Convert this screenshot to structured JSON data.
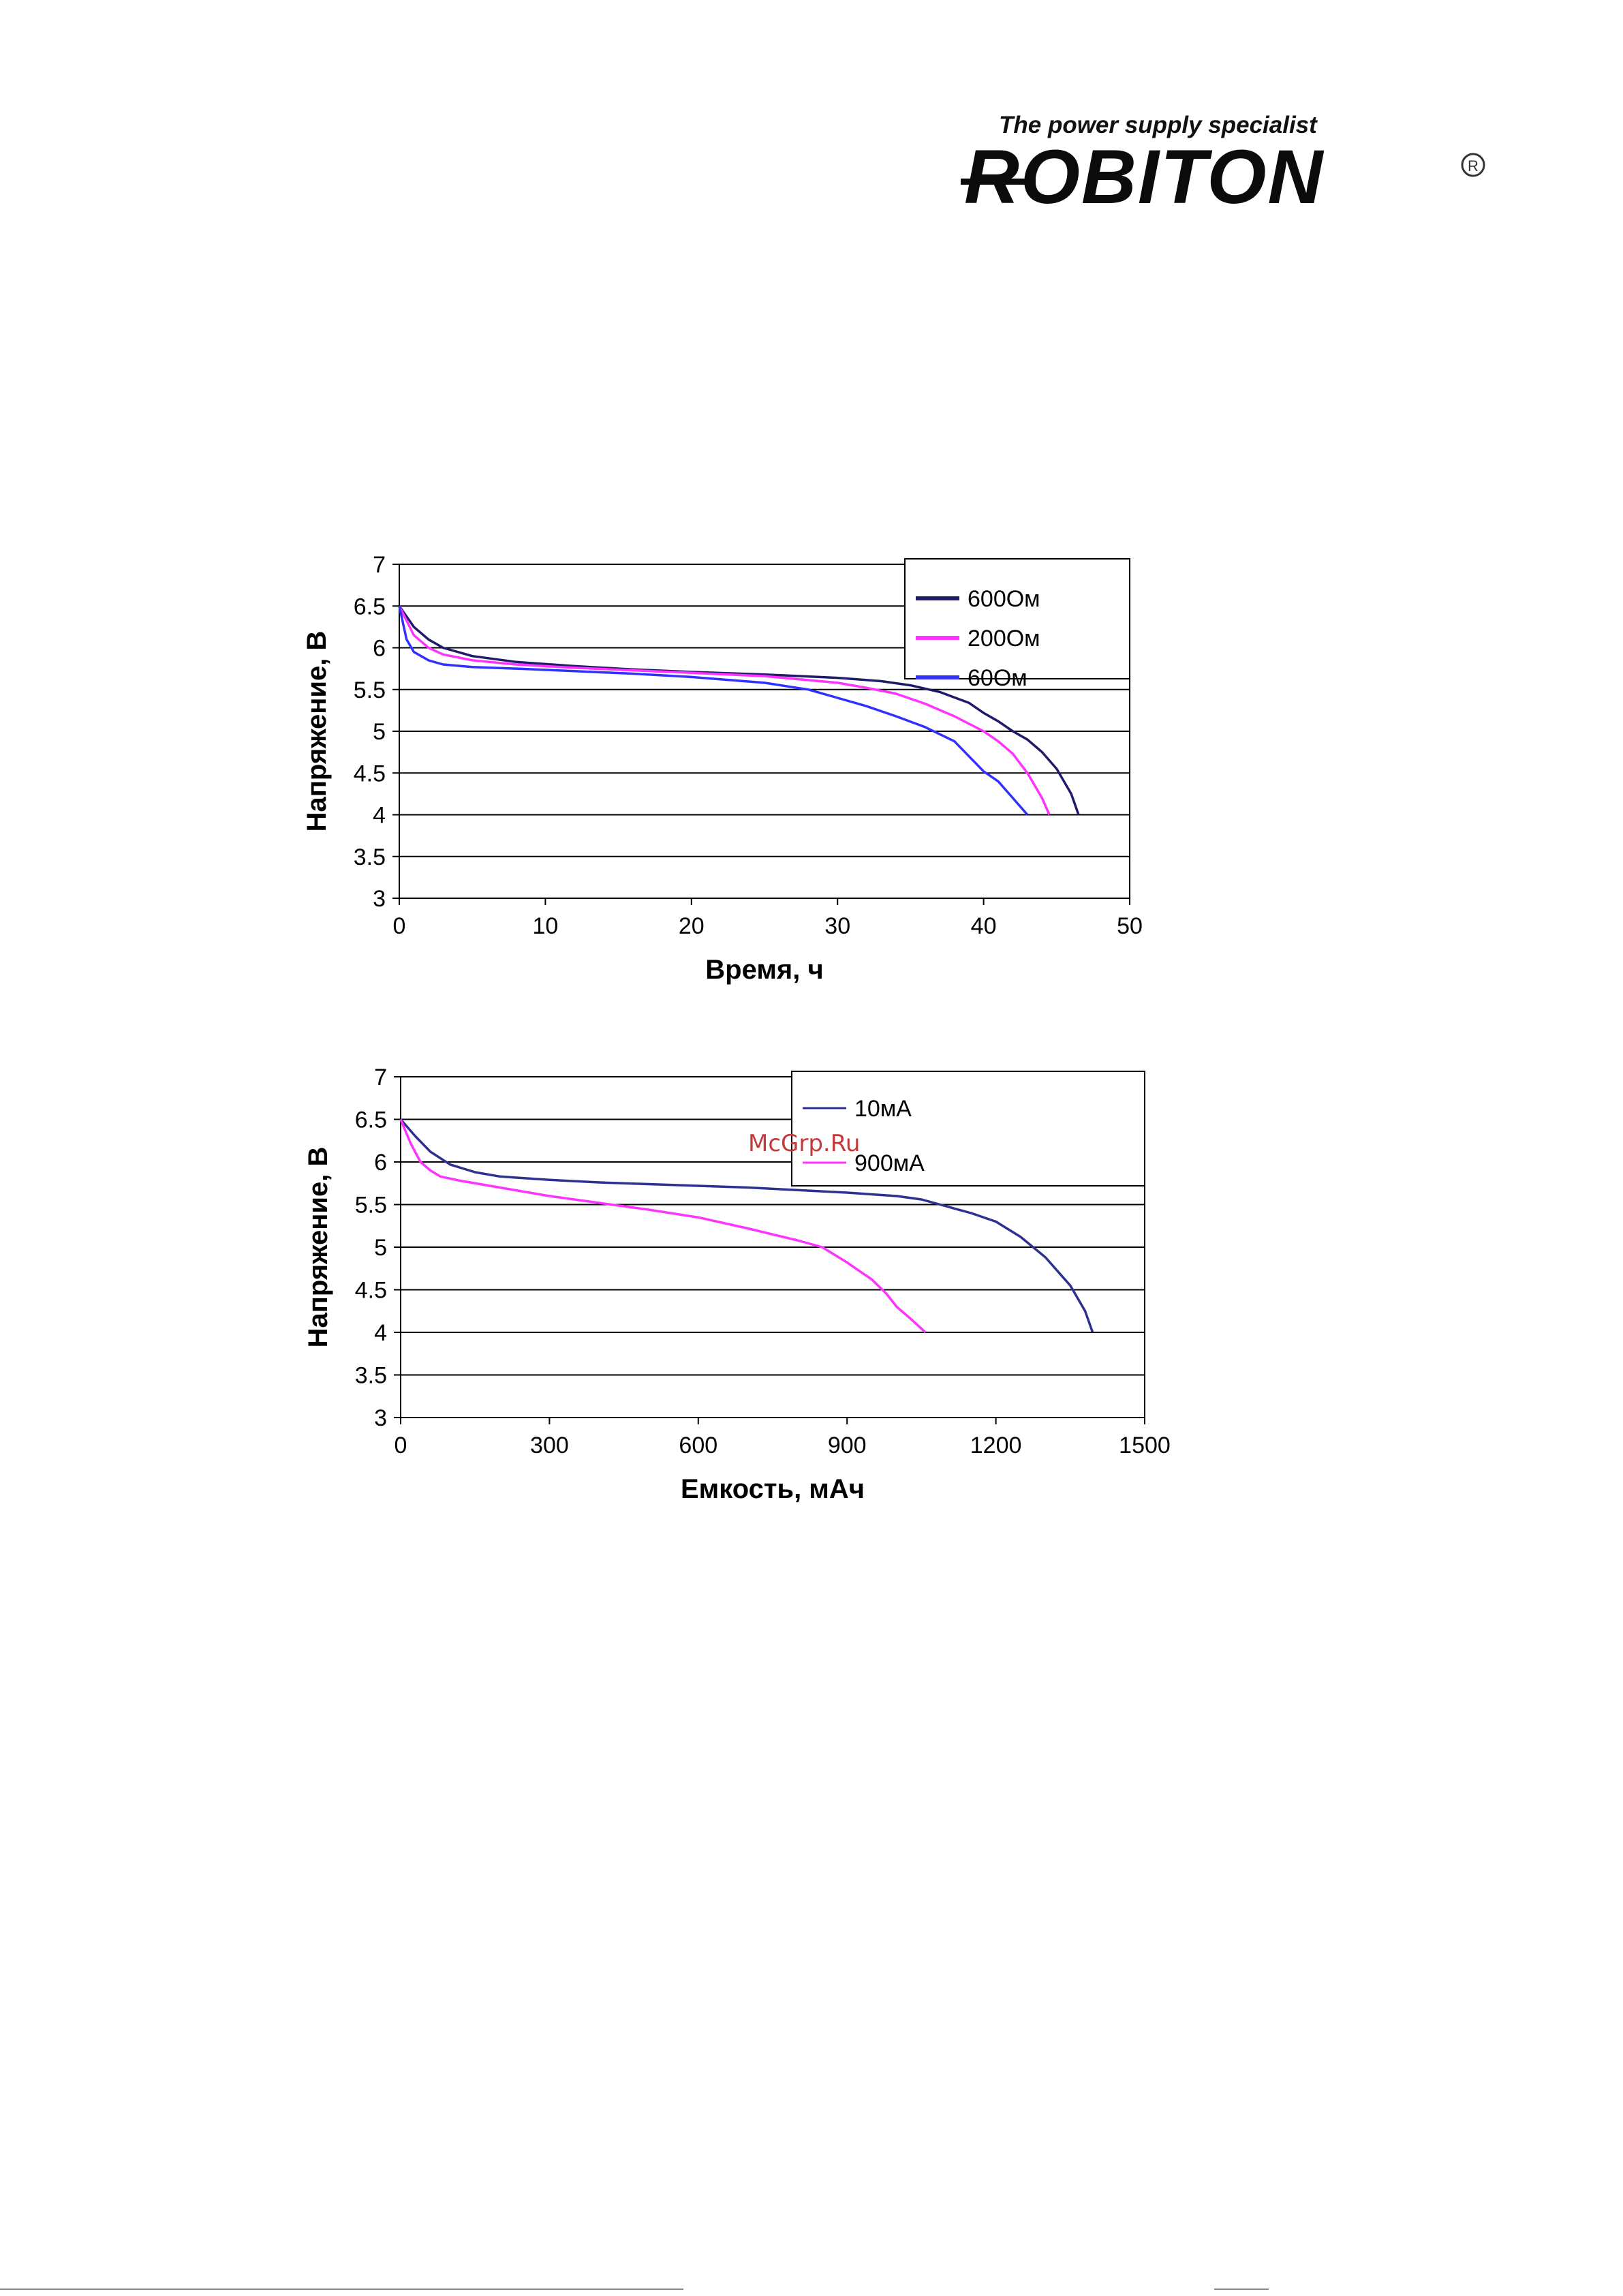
{
  "header": {
    "tagline": "The power supply specialist",
    "brand": "ROBITON",
    "registered_mark": "R"
  },
  "watermark": "McGrp.Ru",
  "chart_data": [
    {
      "type": "line",
      "xlabel": "Время, ч",
      "ylabel": "Напряжение, В",
      "xlim": [
        0,
        50
      ],
      "ylim": [
        3,
        7
      ],
      "xticks": [
        "0",
        "10",
        "20",
        "30",
        "40",
        "50"
      ],
      "yticks": [
        "3",
        "3.5",
        "4",
        "4.5",
        "5",
        "5.5",
        "6",
        "6.5",
        "7"
      ],
      "grid": "horizontal",
      "legend_position": "top-right",
      "series": [
        {
          "name": "600Ом",
          "color": "#1f1b6b",
          "x": [
            0,
            1,
            2,
            3,
            5,
            8,
            12,
            16,
            20,
            25,
            30,
            33,
            35,
            37,
            39,
            40,
            41,
            42,
            43,
            44,
            45,
            46,
            46.5
          ],
          "y": [
            6.5,
            6.25,
            6.1,
            6.0,
            5.9,
            5.83,
            5.78,
            5.74,
            5.71,
            5.68,
            5.64,
            5.6,
            5.55,
            5.47,
            5.34,
            5.22,
            5.12,
            5.0,
            4.9,
            4.75,
            4.55,
            4.25,
            4.0
          ]
        },
        {
          "name": "200Ом",
          "color": "#ff33ff",
          "x": [
            0,
            1,
            2,
            3,
            5,
            8,
            12,
            16,
            20,
            25,
            30,
            32,
            34,
            36,
            38,
            40,
            41,
            42,
            43,
            44,
            44.5
          ],
          "y": [
            6.5,
            6.15,
            6.0,
            5.92,
            5.85,
            5.8,
            5.76,
            5.73,
            5.7,
            5.66,
            5.58,
            5.52,
            5.45,
            5.33,
            5.18,
            5.0,
            4.88,
            4.73,
            4.5,
            4.2,
            4.0
          ]
        },
        {
          "name": "60Ом",
          "color": "#3030ff",
          "x": [
            0,
            0.5,
            1,
            2,
            3,
            5,
            8,
            12,
            16,
            20,
            25,
            28,
            30,
            32,
            34,
            36,
            38,
            39,
            40,
            41,
            42,
            43
          ],
          "y": [
            6.5,
            6.1,
            5.95,
            5.85,
            5.8,
            5.77,
            5.75,
            5.72,
            5.69,
            5.65,
            5.58,
            5.5,
            5.4,
            5.3,
            5.18,
            5.05,
            4.88,
            4.7,
            4.52,
            4.4,
            4.2,
            4.0
          ]
        }
      ]
    },
    {
      "type": "line",
      "xlabel": "Емкость, мАч",
      "ylabel": "Напряжение, В",
      "xlim": [
        0,
        1500
      ],
      "ylim": [
        3,
        7
      ],
      "xticks": [
        "0",
        "300",
        "600",
        "900",
        "1200",
        "1500"
      ],
      "yticks": [
        "3",
        "3.5",
        "4",
        "4.5",
        "5",
        "5.5",
        "6",
        "6.5",
        "7"
      ],
      "grid": "horizontal",
      "legend_position": "top-right",
      "series": [
        {
          "name": "10мА",
          "color": "#2e3190",
          "x": [
            0,
            30,
            60,
            100,
            150,
            200,
            300,
            400,
            500,
            600,
            700,
            800,
            900,
            1000,
            1050,
            1100,
            1150,
            1200,
            1250,
            1300,
            1350,
            1380,
            1395
          ],
          "y": [
            6.5,
            6.3,
            6.12,
            5.97,
            5.88,
            5.83,
            5.79,
            5.76,
            5.74,
            5.72,
            5.7,
            5.67,
            5.64,
            5.6,
            5.56,
            5.48,
            5.4,
            5.3,
            5.12,
            4.88,
            4.55,
            4.25,
            4.0
          ]
        },
        {
          "name": "900мА",
          "color": "#ff33ff",
          "x": [
            0,
            20,
            40,
            60,
            80,
            120,
            200,
            300,
            400,
            500,
            600,
            700,
            800,
            850,
            900,
            950,
            980,
            1000,
            1030,
            1058
          ],
          "y": [
            6.5,
            6.22,
            6.0,
            5.9,
            5.83,
            5.78,
            5.7,
            5.6,
            5.52,
            5.44,
            5.35,
            5.22,
            5.08,
            5.0,
            4.82,
            4.62,
            4.45,
            4.3,
            4.15,
            4.0
          ]
        }
      ]
    }
  ]
}
